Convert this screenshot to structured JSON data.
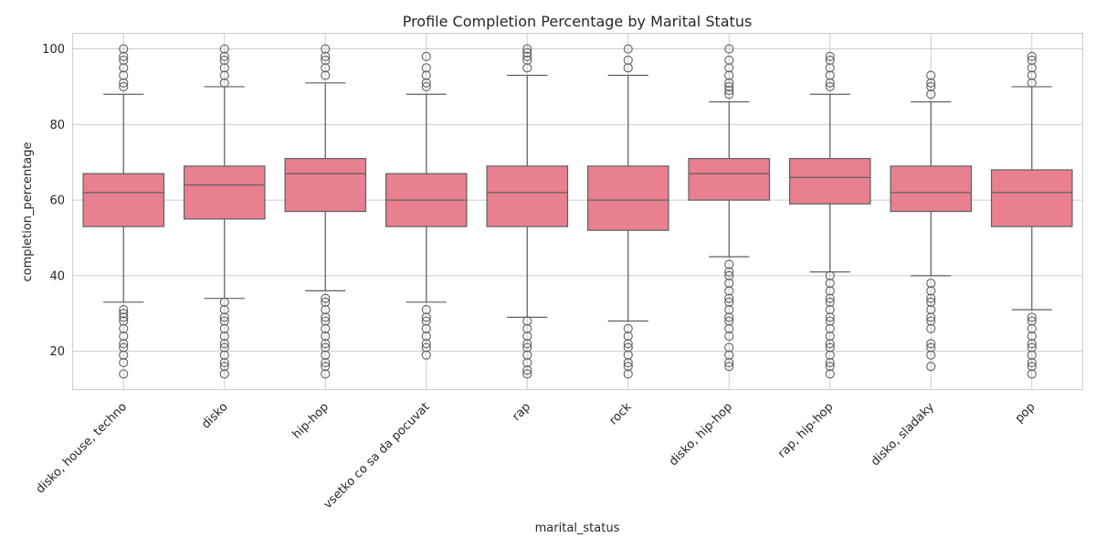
{
  "chart_data": {
    "type": "box",
    "title": "Profile Completion Percentage by Marital Status",
    "xlabel": "marital_status",
    "ylabel": "completion_percentage",
    "ylim": [
      10,
      104
    ],
    "yticks": [
      20,
      40,
      60,
      80,
      100
    ],
    "grid": true,
    "box_color": "#e8808f",
    "line_color": "#5f5f5f",
    "categories": [
      "disko, house, techno",
      "disko",
      "hip-hop",
      "vsetko co sa da pocuvat",
      "rap",
      "rock",
      "disko, hip-hop",
      "rap, hip-hop",
      "disko, sladaky",
      "pop"
    ],
    "boxes": [
      {
        "whislo": 33,
        "q1": 53,
        "med": 62,
        "q3": 67,
        "whishi": 88,
        "fliers": [
          14,
          17,
          19,
          21,
          22,
          24,
          26,
          28,
          29,
          30,
          31,
          90,
          91,
          93,
          95,
          97,
          98,
          100
        ]
      },
      {
        "whislo": 34,
        "q1": 55,
        "med": 64,
        "q3": 69,
        "whishi": 90,
        "fliers": [
          14,
          16,
          17,
          19,
          21,
          22,
          24,
          26,
          28,
          29,
          31,
          33,
          91,
          93,
          95,
          97,
          98,
          100
        ]
      },
      {
        "whislo": 36,
        "q1": 57,
        "med": 67,
        "q3": 71,
        "whishi": 91,
        "fliers": [
          14,
          16,
          17,
          19,
          21,
          22,
          24,
          26,
          28,
          29,
          31,
          33,
          34,
          93,
          95,
          97,
          98,
          100
        ]
      },
      {
        "whislo": 33,
        "q1": 53,
        "med": 60,
        "q3": 67,
        "whishi": 88,
        "fliers": [
          19,
          21,
          22,
          24,
          26,
          28,
          29,
          31,
          90,
          91,
          93,
          95,
          98
        ]
      },
      {
        "whislo": 29,
        "q1": 53,
        "med": 62,
        "q3": 69,
        "whishi": 93,
        "fliers": [
          14,
          15,
          17,
          19,
          21,
          22,
          24,
          26,
          28,
          95,
          97,
          98,
          99,
          100
        ]
      },
      {
        "whislo": 28,
        "q1": 52,
        "med": 60,
        "q3": 69,
        "whishi": 93,
        "fliers": [
          14,
          16,
          17,
          19,
          21,
          22,
          24,
          26,
          95,
          97,
          100
        ]
      },
      {
        "whislo": 45,
        "q1": 60,
        "med": 67,
        "q3": 71,
        "whishi": 86,
        "fliers": [
          16,
          17,
          19,
          21,
          24,
          26,
          28,
          29,
          31,
          33,
          34,
          36,
          38,
          40,
          41,
          43,
          88,
          89,
          90,
          91,
          93,
          95,
          97,
          100
        ]
      },
      {
        "whislo": 41,
        "q1": 59,
        "med": 66,
        "q3": 71,
        "whishi": 88,
        "fliers": [
          14,
          16,
          17,
          19,
          21,
          22,
          24,
          26,
          28,
          29,
          31,
          33,
          34,
          36,
          38,
          40,
          90,
          91,
          93,
          95,
          97,
          98
        ]
      },
      {
        "whislo": 40,
        "q1": 57,
        "med": 62,
        "q3": 69,
        "whishi": 86,
        "fliers": [
          16,
          19,
          21,
          22,
          26,
          28,
          29,
          31,
          33,
          34,
          36,
          38,
          88,
          90,
          91,
          93
        ]
      },
      {
        "whislo": 31,
        "q1": 53,
        "med": 62,
        "q3": 68,
        "whishi": 90,
        "fliers": [
          14,
          16,
          17,
          19,
          21,
          22,
          24,
          26,
          28,
          29,
          91,
          93,
          95,
          97,
          98
        ]
      }
    ]
  }
}
